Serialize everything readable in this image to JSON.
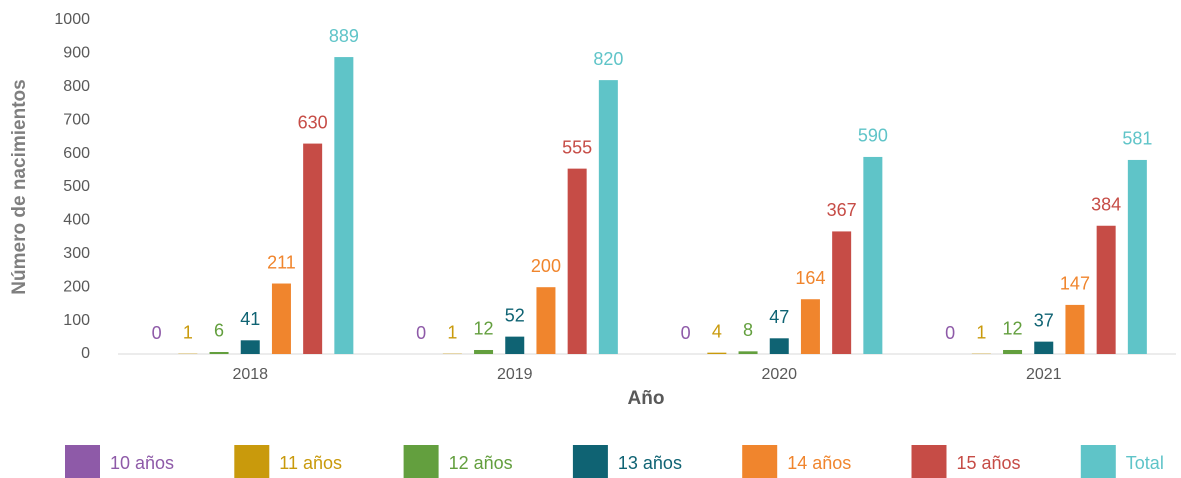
{
  "chart_data": {
    "type": "bar",
    "x_label": "Año",
    "y_label": "Número de nacimientos",
    "categories": [
      "2018",
      "2019",
      "2020",
      "2021"
    ],
    "series": [
      {
        "name": "10 años",
        "color": "#8e5aa8",
        "values": [
          0,
          0,
          0,
          0
        ]
      },
      {
        "name": "11 años",
        "color": "#c99a0c",
        "values": [
          1,
          1,
          4,
          1
        ]
      },
      {
        "name": "12 años",
        "color": "#639f3e",
        "values": [
          6,
          12,
          8,
          12
        ]
      },
      {
        "name": "13 años",
        "color": "#0f6373",
        "values": [
          41,
          52,
          47,
          37
        ]
      },
      {
        "name": "14 años",
        "color": "#f0852d",
        "values": [
          211,
          200,
          164,
          147
        ]
      },
      {
        "name": "15 años",
        "color": "#c64c46",
        "values": [
          630,
          555,
          367,
          384
        ]
      },
      {
        "name": "Total",
        "color": "#5fc4c8",
        "values": [
          889,
          820,
          590,
          581
        ]
      }
    ],
    "ylim": [
      0,
      1000
    ],
    "yticks": [
      0,
      100,
      200,
      300,
      400,
      500,
      600,
      700,
      800,
      900,
      1000
    ],
    "legend": "bottom"
  }
}
